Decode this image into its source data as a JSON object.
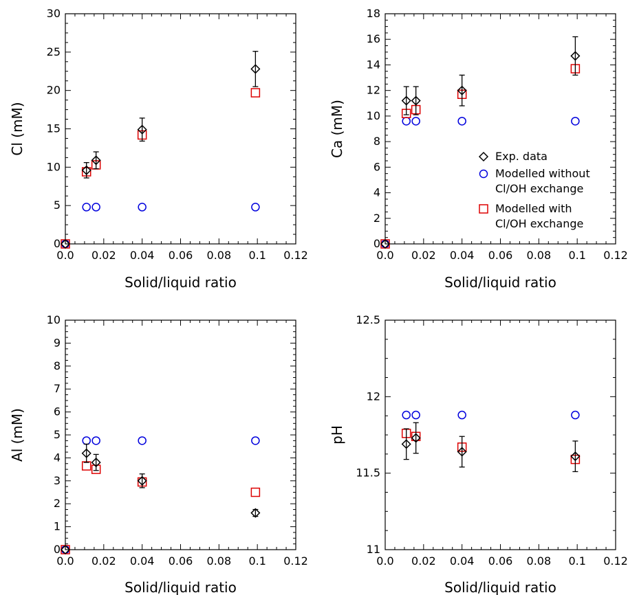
{
  "chart_data": [
    {
      "id": "cl",
      "type": "scatter",
      "xlabel": "Solid/liquid ratio",
      "ylabel": "Cl (mM)",
      "xlim": [
        0,
        0.12
      ],
      "ylim": [
        0,
        30
      ],
      "xticks": [
        0,
        0.02,
        0.04,
        0.06,
        0.08,
        0.1,
        0.12
      ],
      "xtick_labels": [
        "0.0",
        "0.02",
        "0.04",
        "0.06",
        "0.08",
        "0.1",
        "0.12"
      ],
      "yticks": [
        0,
        5,
        10,
        15,
        20,
        25,
        30
      ],
      "ytick_labels": [
        "0",
        "5",
        "10",
        "15",
        "20",
        "25",
        "30"
      ],
      "grid": false,
      "series": [
        {
          "key": "exp",
          "x": [
            0,
            0.011,
            0.016,
            0.04,
            0.099
          ],
          "y": [
            0,
            9.6,
            10.9,
            14.9,
            22.8
          ],
          "err": [
            0,
            1.0,
            1.1,
            1.5,
            2.3
          ]
        },
        {
          "key": "without",
          "x": [
            0,
            0.011,
            0.016,
            0.04,
            0.099
          ],
          "y": [
            0,
            4.8,
            4.8,
            4.8,
            4.8
          ]
        },
        {
          "key": "with",
          "x": [
            0,
            0.011,
            0.016,
            0.04,
            0.099
          ],
          "y": [
            0,
            9.4,
            10.3,
            14.2,
            19.7
          ]
        }
      ]
    },
    {
      "id": "ca",
      "type": "scatter",
      "xlabel": "Solid/liquid ratio",
      "ylabel": "Ca (mM)",
      "xlim": [
        0,
        0.12
      ],
      "ylim": [
        0,
        18
      ],
      "xticks": [
        0,
        0.02,
        0.04,
        0.06,
        0.08,
        0.1,
        0.12
      ],
      "xtick_labels": [
        "0.0",
        "0.02",
        "0.04",
        "0.06",
        "0.08",
        "0.1",
        "0.12"
      ],
      "yticks": [
        0,
        2,
        4,
        6,
        8,
        10,
        12,
        14,
        16,
        18
      ],
      "ytick_labels": [
        "0",
        "2",
        "4",
        "6",
        "8",
        "10",
        "12",
        "14",
        "16",
        "18"
      ],
      "grid": false,
      "legend": {
        "position": "right",
        "entries": [
          {
            "marker": "diamond",
            "lines": [
              "Exp. data"
            ]
          },
          {
            "marker": "circle",
            "lines": [
              "Modelled without",
              "Cl/OH exchange"
            ]
          },
          {
            "marker": "square",
            "lines": [
              "Modelled with",
              "Cl/OH exchange"
            ]
          }
        ]
      },
      "series": [
        {
          "key": "exp",
          "x": [
            0,
            0.011,
            0.016,
            0.04,
            0.099
          ],
          "y": [
            0,
            11.2,
            11.2,
            12.0,
            14.7
          ],
          "err": [
            0,
            1.1,
            1.1,
            1.2,
            1.5
          ]
        },
        {
          "key": "without",
          "x": [
            0,
            0.011,
            0.016,
            0.04,
            0.099
          ],
          "y": [
            0,
            9.6,
            9.6,
            9.6,
            9.6
          ]
        },
        {
          "key": "with",
          "x": [
            0,
            0.011,
            0.016,
            0.04,
            0.099
          ],
          "y": [
            0,
            10.2,
            10.5,
            11.7,
            13.7
          ]
        }
      ]
    },
    {
      "id": "al",
      "type": "scatter",
      "xlabel": "Solid/liquid ratio",
      "ylabel": "Al (mM)",
      "xlim": [
        0,
        0.12
      ],
      "ylim": [
        0,
        10
      ],
      "xticks": [
        0,
        0.02,
        0.04,
        0.06,
        0.08,
        0.1,
        0.12
      ],
      "xtick_labels": [
        "0.0",
        "0.02",
        "0.04",
        "0.06",
        "0.08",
        "0.1",
        "0.12"
      ],
      "yticks": [
        0,
        1,
        2,
        3,
        4,
        5,
        6,
        7,
        8,
        9,
        10
      ],
      "ytick_labels": [
        "0",
        "1",
        "2",
        "3",
        "4",
        "5",
        "6",
        "7",
        "8",
        "9",
        "10"
      ],
      "grid": false,
      "series": [
        {
          "key": "exp",
          "x": [
            0,
            0.011,
            0.016,
            0.04,
            0.099
          ],
          "y": [
            0,
            4.2,
            3.8,
            3.0,
            1.6
          ],
          "err": [
            0,
            0.4,
            0.35,
            0.3,
            0.15
          ]
        },
        {
          "key": "without",
          "x": [
            0,
            0.011,
            0.016,
            0.04,
            0.099
          ],
          "y": [
            0,
            4.75,
            4.75,
            4.75,
            4.75
          ]
        },
        {
          "key": "with",
          "x": [
            0,
            0.011,
            0.016,
            0.04,
            0.099
          ],
          "y": [
            0,
            3.65,
            3.5,
            2.95,
            2.5
          ]
        }
      ]
    },
    {
      "id": "ph",
      "type": "scatter",
      "xlabel": "Solid/liquid ratio",
      "ylabel": "pH",
      "xlim": [
        0,
        0.12
      ],
      "ylim": [
        11,
        12.5
      ],
      "xticks": [
        0,
        0.02,
        0.04,
        0.06,
        0.08,
        0.1,
        0.12
      ],
      "xtick_labels": [
        "0.0",
        "0.02",
        "0.04",
        "0.06",
        "0.08",
        "0.1",
        "0.12"
      ],
      "yticks": [
        11,
        11.5,
        12,
        12.5
      ],
      "ytick_labels": [
        "11",
        "11.5",
        "12",
        "12.5"
      ],
      "grid": false,
      "series": [
        {
          "key": "exp",
          "x": [
            0.011,
            0.016,
            0.04,
            0.099
          ],
          "y": [
            11.69,
            11.73,
            11.64,
            11.61
          ],
          "err": [
            0.1,
            0.1,
            0.1,
            0.1
          ]
        },
        {
          "key": "without",
          "x": [
            0.011,
            0.016,
            0.04,
            0.099
          ],
          "y": [
            11.88,
            11.88,
            11.88,
            11.88
          ]
        },
        {
          "key": "with",
          "x": [
            0.011,
            0.016,
            0.04,
            0.099
          ],
          "y": [
            11.76,
            11.74,
            11.67,
            11.59
          ]
        }
      ]
    }
  ],
  "colors": {
    "exp": "#000000",
    "without": "#0000dd",
    "with": "#dd0000",
    "axis": "#000000"
  }
}
